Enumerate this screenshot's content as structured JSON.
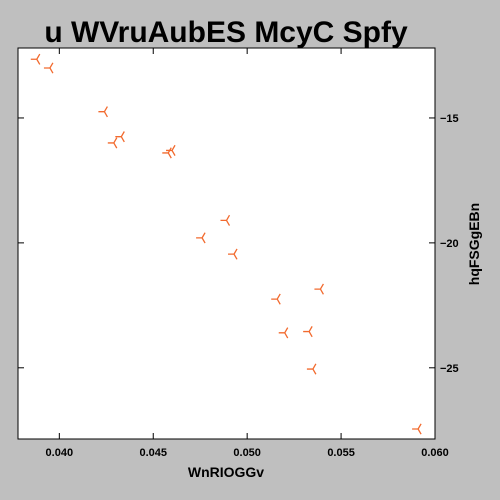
{
  "chart_data": {
    "type": "scatter",
    "title": "u WVruAubES  McyC Spfy",
    "xlabel": "WnRIOGGv",
    "ylabel": "hqFSGgEBn",
    "xlim": [
      0.0378,
      0.06
    ],
    "ylim": [
      -27.85,
      -12.2
    ],
    "x_ticks": [
      0.04,
      0.045,
      0.05,
      0.055,
      0.06
    ],
    "x_tick_labels": [
      "0.040",
      "0.045",
      "0.050",
      "0.055",
      "0.060"
    ],
    "y_ticks": [
      -15,
      -20,
      -25
    ],
    "y_tick_labels": [
      "−15",
      "−20",
      "−25"
    ],
    "y_axis_side": "right",
    "grid": false,
    "marker": "tri-left",
    "marker_color": "#f26a2e",
    "series": [
      {
        "points": [
          [
            0.0388,
            -12.65
          ],
          [
            0.0395,
            -13.0
          ],
          [
            0.0424,
            -14.75
          ],
          [
            0.0429,
            -16.0
          ],
          [
            0.0433,
            -15.75
          ],
          [
            0.0458,
            -16.4
          ],
          [
            0.046,
            -16.3
          ],
          [
            0.0476,
            -19.8
          ],
          [
            0.0489,
            -19.1
          ],
          [
            0.0493,
            -20.45
          ],
          [
            0.0516,
            -22.25
          ],
          [
            0.052,
            -23.6
          ],
          [
            0.0533,
            -23.55
          ],
          [
            0.0535,
            -25.05
          ],
          [
            0.0539,
            -21.85
          ],
          [
            0.0591,
            -27.45
          ]
        ]
      }
    ]
  }
}
